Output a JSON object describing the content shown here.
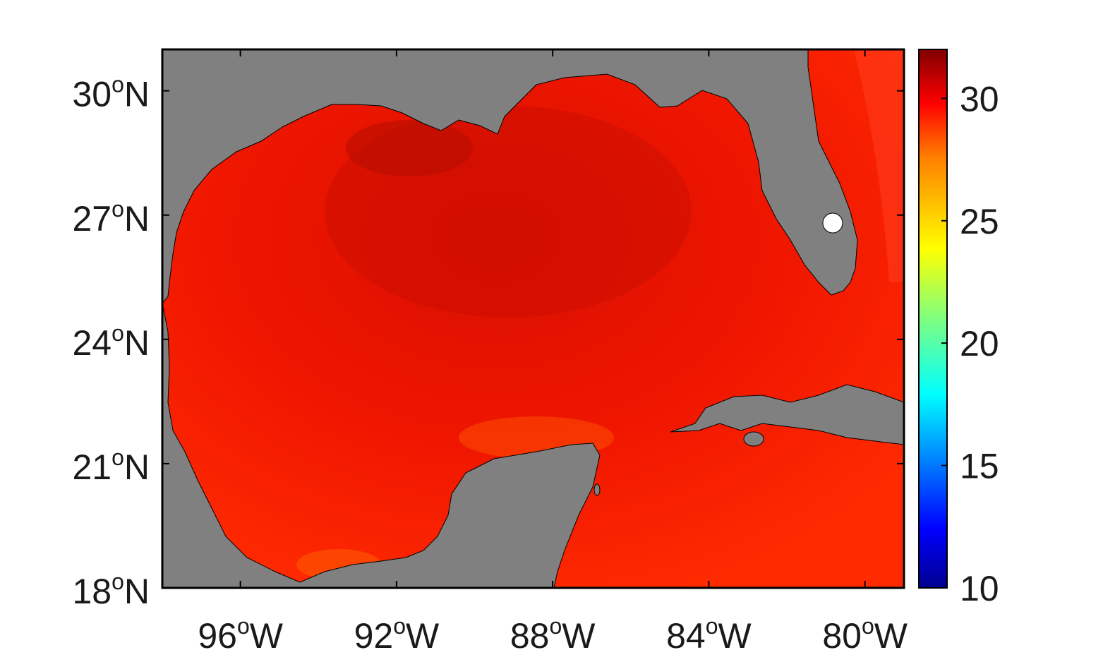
{
  "map": {
    "region": "Gulf of Mexico",
    "lat_range": [
      18,
      31
    ],
    "lon_range": [
      -98,
      -79
    ],
    "y_ticks": [
      {
        "value": 30,
        "num": "30",
        "sup": "o",
        "hemi": "N"
      },
      {
        "value": 27,
        "num": "27",
        "sup": "o",
        "hemi": "N"
      },
      {
        "value": 24,
        "num": "24",
        "sup": "o",
        "hemi": "N"
      },
      {
        "value": 21,
        "num": "21",
        "sup": "o",
        "hemi": "N"
      },
      {
        "value": 18,
        "num": "18",
        "sup": "o",
        "hemi": "N"
      }
    ],
    "x_ticks": [
      {
        "value": -96,
        "num": "96",
        "sup": "o",
        "hemi": "W"
      },
      {
        "value": -92,
        "num": "92",
        "sup": "o",
        "hemi": "W"
      },
      {
        "value": -88,
        "num": "88",
        "sup": "o",
        "hemi": "W"
      },
      {
        "value": -84,
        "num": "84",
        "sup": "o",
        "hemi": "W"
      },
      {
        "value": -80,
        "num": "80",
        "sup": "o",
        "hemi": "W"
      }
    ],
    "land_color": "#808080",
    "sea_color": "#ff1a00"
  },
  "colorbar": {
    "min": 10,
    "max": 32,
    "ticks": [
      {
        "value": 30,
        "label": "30"
      },
      {
        "value": 25,
        "label": "25"
      },
      {
        "value": 20,
        "label": "20"
      },
      {
        "value": 15,
        "label": "15"
      },
      {
        "value": 10,
        "label": "10"
      }
    ],
    "colormap": "jet"
  }
}
